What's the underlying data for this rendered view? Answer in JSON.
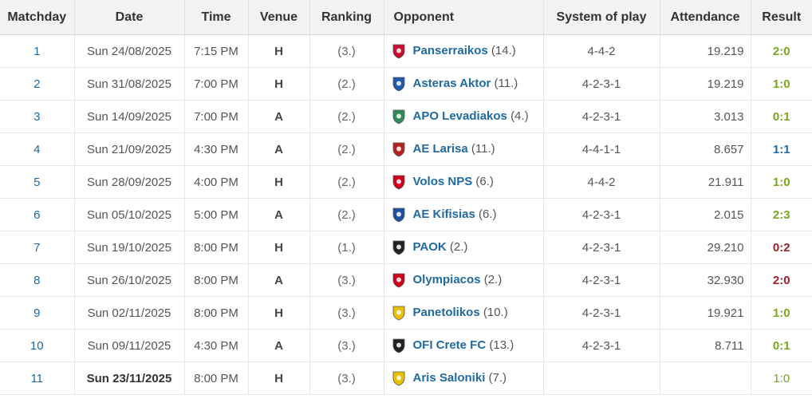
{
  "columns": [
    "Matchday",
    "Date",
    "Time",
    "Venue",
    "Ranking",
    "Opponent",
    "System of play",
    "Attendance",
    "Result"
  ],
  "rows": [
    {
      "matchday": "1",
      "date": "Sun 24/08/2025",
      "time": "7:15 PM",
      "venue": "H",
      "ranking": "(3.)",
      "opponent": "Panserraikos",
      "opp_rank": "(14.)",
      "system": "4-4-2",
      "attendance": "19.219",
      "result": "2:0",
      "result_type": "win",
      "crest": "crest-panserraikos-icon",
      "crest_color": "#c8102e"
    },
    {
      "matchday": "2",
      "date": "Sun 31/08/2025",
      "time": "7:00 PM",
      "venue": "H",
      "ranking": "(2.)",
      "opponent": "Asteras Aktor",
      "opp_rank": "(11.)",
      "system": "4-2-3-1",
      "attendance": "19.219",
      "result": "1:0",
      "result_type": "win",
      "crest": "crest-asteras-icon",
      "crest_color": "#1e5aa8"
    },
    {
      "matchday": "3",
      "date": "Sun 14/09/2025",
      "time": "7:00 PM",
      "venue": "A",
      "ranking": "(2.)",
      "opponent": "APO Levadiakos",
      "opp_rank": "(4.)",
      "system": "4-2-3-1",
      "attendance": "3.013",
      "result": "0:1",
      "result_type": "win",
      "crest": "crest-levadiakos-icon",
      "crest_color": "#2e8b57"
    },
    {
      "matchday": "4",
      "date": "Sun 21/09/2025",
      "time": "4:30 PM",
      "venue": "A",
      "ranking": "(2.)",
      "opponent": "AE Larisa",
      "opp_rank": "(11.)",
      "system": "4-4-1-1",
      "attendance": "8.657",
      "result": "1:1",
      "result_type": "draw",
      "crest": "crest-larisa-icon",
      "crest_color": "#b22222"
    },
    {
      "matchday": "5",
      "date": "Sun 28/09/2025",
      "time": "4:00 PM",
      "venue": "H",
      "ranking": "(2.)",
      "opponent": "Volos NPS",
      "opp_rank": "(6.)",
      "system": "4-4-2",
      "attendance": "21.911",
      "result": "1:0",
      "result_type": "win",
      "crest": "crest-volos-icon",
      "crest_color": "#d0021b"
    },
    {
      "matchday": "6",
      "date": "Sun 05/10/2025",
      "time": "5:00 PM",
      "venue": "A",
      "ranking": "(2.)",
      "opponent": "AE Kifisias",
      "opp_rank": "(6.)",
      "system": "4-2-3-1",
      "attendance": "2.015",
      "result": "2:3",
      "result_type": "win",
      "crest": "crest-kifisias-icon",
      "crest_color": "#1e4fa0"
    },
    {
      "matchday": "7",
      "date": "Sun 19/10/2025",
      "time": "8:00 PM",
      "venue": "H",
      "ranking": "(1.)",
      "opponent": "PAOK",
      "opp_rank": "(2.)",
      "system": "4-2-3-1",
      "attendance": "29.210",
      "result": "0:2",
      "result_type": "loss",
      "crest": "crest-paok-icon",
      "crest_color": "#222222"
    },
    {
      "matchday": "8",
      "date": "Sun 26/10/2025",
      "time": "8:00 PM",
      "venue": "A",
      "ranking": "(3.)",
      "opponent": "Olympiacos",
      "opp_rank": "(2.)",
      "system": "4-2-3-1",
      "attendance": "32.930",
      "result": "2:0",
      "result_type": "loss",
      "crest": "crest-olympiacos-icon",
      "crest_color": "#d0021b"
    },
    {
      "matchday": "9",
      "date": "Sun 02/11/2025",
      "time": "8:00 PM",
      "venue": "H",
      "ranking": "(3.)",
      "opponent": "Panetolikos",
      "opp_rank": "(10.)",
      "system": "4-2-3-1",
      "attendance": "19.921",
      "result": "1:0",
      "result_type": "win",
      "crest": "crest-panetolikos-icon",
      "crest_color": "#e8c000"
    },
    {
      "matchday": "10",
      "date": "Sun 09/11/2025",
      "time": "4:30 PM",
      "venue": "A",
      "ranking": "(3.)",
      "opponent": "OFI Crete FC",
      "opp_rank": "(13.)",
      "system": "4-2-3-1",
      "attendance": "8.711",
      "result": "0:1",
      "result_type": "win",
      "crest": "crest-ofi-icon",
      "crest_color": "#222222"
    },
    {
      "matchday": "11",
      "date": "Sun 23/11/2025",
      "time": "8:00 PM",
      "venue": "H",
      "ranking": "(3.)",
      "opponent": "Aris Saloniki",
      "opp_rank": "(7.)",
      "system": "",
      "attendance": "",
      "result": "1:0",
      "result_type": "upcoming",
      "crest": "crest-aris-icon",
      "crest_color": "#e8c000",
      "date_bold": true
    }
  ]
}
